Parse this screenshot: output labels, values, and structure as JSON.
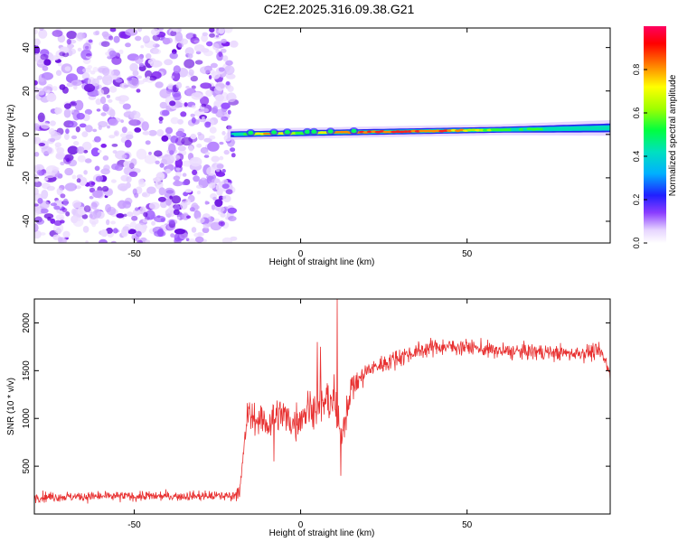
{
  "title": "C2E2.2025.316.09.38.G21",
  "chart_data": [
    {
      "type": "heatmap",
      "xlabel": "Height of straight line (km)",
      "ylabel": "Frequency (Hz)",
      "xlim": [
        -80,
        93
      ],
      "ylim": [
        -50,
        49
      ],
      "xticks": [
        -50,
        0,
        50
      ],
      "xtick_labels": [
        "-50",
        "0",
        "50"
      ],
      "yticks": [
        -40,
        -20,
        0,
        20,
        40
      ],
      "ytick_labels": [
        "-40",
        "-20",
        "0",
        "20",
        "40"
      ],
      "noise_region_x": [
        -80,
        -20
      ],
      "signal_line": {
        "x_start": -22,
        "x_end": 93,
        "freq_start": 0,
        "freq_end": 3,
        "description_points": [
          {
            "x": -20,
            "amp": 0.25
          },
          {
            "x": -10,
            "amp": 0.85
          },
          {
            "x": 0,
            "amp": 0.5
          },
          {
            "x": 10,
            "amp": 0.75
          },
          {
            "x": 25,
            "amp": 0.9
          },
          {
            "x": 45,
            "amp": 0.8
          },
          {
            "x": 60,
            "amp": 0.5
          },
          {
            "x": 80,
            "amp": 0.3
          },
          {
            "x": 93,
            "amp": 0.25
          }
        ]
      },
      "colorbar": {
        "label": "Normalized spectral amplitude",
        "range": [
          0,
          1
        ],
        "ticks": [
          0.0,
          0.2,
          0.4,
          0.6,
          0.8
        ],
        "tick_labels": [
          "0.0",
          "0.2",
          "0.4",
          "0.6",
          "0.8"
        ]
      }
    },
    {
      "type": "line",
      "xlabel": "Height of straight line (km)",
      "ylabel": "SNR (10 * v/v)",
      "xlim": [
        -80,
        93
      ],
      "ylim": [
        0,
        2250
      ],
      "xticks": [
        -50,
        0,
        50
      ],
      "xtick_labels": [
        "-50",
        "0",
        "50"
      ],
      "yticks": [
        500,
        1000,
        1500,
        2000
      ],
      "ytick_labels": [
        "500",
        "1000",
        "1500",
        "2000"
      ],
      "color": "#e83232",
      "envelope": {
        "x": [
          -80,
          -20,
          -18,
          -16,
          -14,
          -10,
          -6,
          -2,
          2,
          6,
          10,
          12,
          15,
          20,
          30,
          40,
          50,
          60,
          70,
          80,
          90,
          93
        ],
        "mean": [
          180,
          190,
          300,
          1050,
          1000,
          950,
          1050,
          950,
          1100,
          1150,
          1200,
          800,
          1300,
          1500,
          1650,
          1750,
          1750,
          1700,
          1700,
          1680,
          1700,
          1500
        ],
        "noise": [
          80,
          80,
          200,
          250,
          250,
          300,
          300,
          300,
          300,
          350,
          350,
          300,
          250,
          150,
          150,
          130,
          130,
          130,
          130,
          130,
          130,
          150
        ]
      },
      "spikes": [
        {
          "x": 11,
          "y": 2250
        },
        {
          "x": 12,
          "y": 400
        },
        {
          "x": 6,
          "y": 1750
        },
        {
          "x": 5,
          "y": 1800
        },
        {
          "x": -8,
          "y": 550
        },
        {
          "x": 16,
          "y": 1450
        }
      ]
    }
  ]
}
